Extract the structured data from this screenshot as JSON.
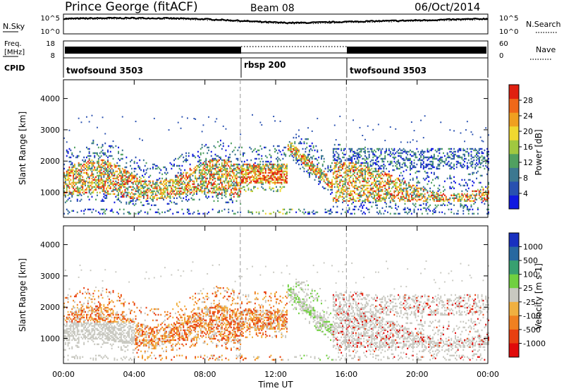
{
  "header": {
    "station": "Prince George (fitACF)",
    "beam": "Beam 08",
    "date": "06/Oct/2014"
  },
  "noise_panel": {
    "left_label": "N.Sky",
    "right_label": "N.Search",
    "left_ticks": [
      "10^5",
      "10^0"
    ],
    "right_ticks": [
      "10^5",
      "10^0"
    ]
  },
  "freq_panel": {
    "left_label_1": "Freq.",
    "left_label_2": "[MHz]",
    "right_label": "Nave",
    "left_ticks": [
      "18",
      "8"
    ],
    "right_ticks": [
      "60",
      "0"
    ]
  },
  "cpid_panel": {
    "label": "CPID",
    "modes": [
      {
        "name": "twofsound 3503",
        "start_h": 0
      },
      {
        "name": "rbsp 200",
        "start_h": 10
      },
      {
        "name": "twofsound 3503",
        "start_h": 16
      }
    ]
  },
  "x_axis": {
    "label": "Time UT",
    "ticks": [
      "00:00",
      "04:00",
      "08:00",
      "12:00",
      "16:00",
      "20:00",
      "00:00"
    ]
  },
  "colors": {
    "power_scale": [
      "#1018e0",
      "#2850b0",
      "#3c7890",
      "#50a060",
      "#a0c840",
      "#f0d830",
      "#f0a020",
      "#f06818",
      "#e02010"
    ],
    "velocity_scale": [
      "#1830c0",
      "#2868a0",
      "#38a070",
      "#70d040",
      "#c8c8c0",
      "#f0b040",
      "#f08020",
      "#e84010",
      "#e00a0a"
    ]
  },
  "chart_data": [
    {
      "type": "heatmap",
      "quantity": "power",
      "ylabel": "Slant Range [km]",
      "xlabel": "",
      "xlim": [
        0,
        24
      ],
      "ylim": [
        200,
        4600
      ],
      "yticks": [
        1000,
        2000,
        3000,
        4000
      ],
      "colorbar_label": "Power [dB]",
      "colorbar_ticks": [
        "4",
        "8",
        "12",
        "16",
        "20",
        "24",
        "28"
      ],
      "colorbar_range": [
        0,
        32
      ],
      "mode_changes_h": [
        10,
        16
      ]
    },
    {
      "type": "heatmap",
      "quantity": "velocity",
      "ylabel": "Slant Range [km]",
      "xlabel": "Time UT",
      "xlim": [
        0,
        24
      ],
      "ylim": [
        200,
        4600
      ],
      "yticks": [
        1000,
        2000,
        3000,
        4000
      ],
      "colorbar_label": "Velocity [m s-1]",
      "colorbar_ticks": [
        "1000",
        "500",
        "100",
        "25",
        "-25",
        "-100",
        "-500",
        "-1000"
      ],
      "mode_changes_h": [
        10,
        16
      ]
    }
  ]
}
